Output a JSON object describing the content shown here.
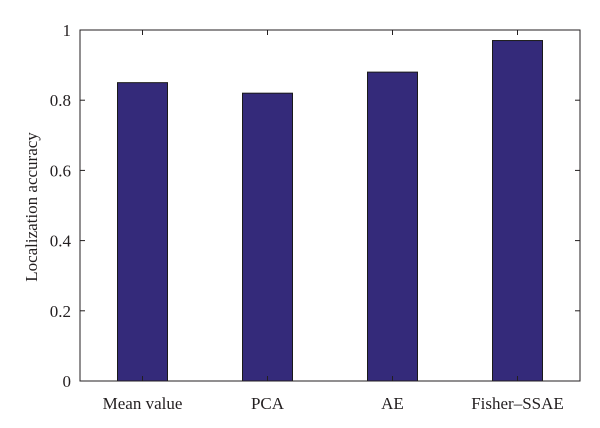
{
  "chart_data": {
    "type": "bar",
    "categories": [
      "Mean value",
      "PCA",
      "AE",
      "Fisher–SSAE"
    ],
    "values": [
      0.85,
      0.82,
      0.88,
      0.97
    ],
    "title": "",
    "xlabel": "",
    "ylabel": "Localization accuracy",
    "ylim": [
      0,
      1
    ],
    "yticks": [
      0,
      0.2,
      0.4,
      0.6,
      0.8,
      1
    ],
    "ytick_labels": [
      "0",
      "0.2",
      "0.4",
      "0.6",
      "0.8",
      "1"
    ],
    "grid": false,
    "legend": "none",
    "colors": {
      "bar_fill": "#342a7a",
      "bar_edge": "#1a1a1a",
      "axis": "#231f20",
      "text": "#231f20",
      "background": "#ffffff"
    }
  }
}
